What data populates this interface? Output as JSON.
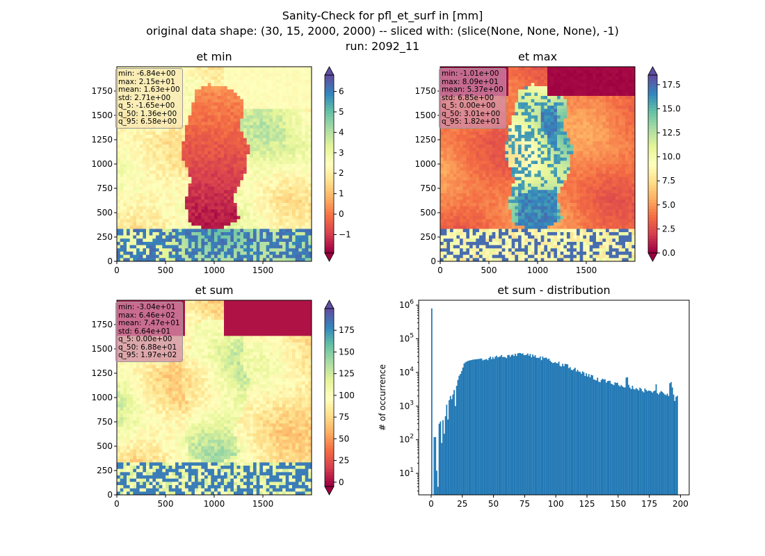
{
  "figure": {
    "title_line1": "Sanity-Check for pfl_et_surf in [mm]",
    "title_line2": "original data shape: (30, 15, 2000, 2000) -- sliced with: (slice(None, None, None), -1)",
    "title_line3": "run: 2092_11"
  },
  "colormap": "Spectral",
  "chart_data": [
    {
      "type": "heatmap",
      "title": "et min",
      "xlim": [
        0,
        2000
      ],
      "ylim": [
        0,
        2000
      ],
      "x_ticks": [
        "0",
        "500",
        "1000",
        "1500"
      ],
      "y_ticks": [
        "0",
        "250",
        "500",
        "750",
        "1000",
        "1250",
        "1500",
        "1750"
      ],
      "colorbar": {
        "min": -1.9,
        "max": 6.8,
        "ticks": [
          -1,
          0,
          1,
          2,
          3,
          4,
          5,
          6
        ],
        "tick_labels": [
          "−1",
          "0",
          "1",
          "2",
          "3",
          "4",
          "5",
          "6"
        ]
      },
      "stats": [
        "min: -6.84e+00",
        "max: 2.15e+01",
        "mean: 1.63e+00",
        "std: 2.71e+00",
        "q_5: -1.65e+00",
        "q_50: 1.36e+00",
        "q_95: 6.58e+00"
      ]
    },
    {
      "type": "heatmap",
      "title": "et max",
      "xlim": [
        0,
        2000
      ],
      "ylim": [
        0,
        2000
      ],
      "x_ticks": [
        "0",
        "500",
        "1000",
        "1500"
      ],
      "y_ticks": [
        "0",
        "250",
        "500",
        "750",
        "1000",
        "1250",
        "1500",
        "1750"
      ],
      "colorbar": {
        "min": 0,
        "max": 18.5,
        "ticks": [
          0,
          2.5,
          5,
          7.5,
          10,
          12.5,
          15,
          17.5
        ],
        "tick_labels": [
          "0.0",
          "2.5",
          "5.0",
          "7.5",
          "10.0",
          "12.5",
          "15.0",
          "17.5"
        ]
      },
      "stats": [
        "min: -1.01e+00",
        "max: 8.09e+01",
        "mean: 5.37e+00",
        "std: 6.85e+00",
        "q_5: 0.00e+00",
        "q_50: 3.01e+00",
        "q_95: 1.82e+01"
      ]
    },
    {
      "type": "heatmap",
      "title": "et sum",
      "xlim": [
        0,
        2000
      ],
      "ylim": [
        0,
        2000
      ],
      "x_ticks": [
        "0",
        "500",
        "1000",
        "1500"
      ],
      "y_ticks": [
        "0",
        "250",
        "500",
        "750",
        "1000",
        "1250",
        "1500",
        "1750"
      ],
      "colorbar": {
        "min": -5,
        "max": 200,
        "ticks": [
          0,
          25,
          50,
          75,
          100,
          125,
          150,
          175
        ],
        "tick_labels": [
          "0",
          "25",
          "50",
          "75",
          "100",
          "125",
          "150",
          "175"
        ]
      },
      "stats": [
        "min: -3.04e+01",
        "max: 6.46e+02",
        "mean: 7.47e+01",
        "std: 6.64e+01",
        "q_5: 0.00e+00",
        "q_50: 6.88e+01",
        "q_95: 1.97e+02"
      ]
    },
    {
      "type": "bar",
      "title": "et sum - distribution",
      "ylabel": "# of occurrence",
      "xlabel": "",
      "y_scale": "log",
      "xlim": [
        -10,
        207
      ],
      "ylim": [
        2.3,
        1400000
      ],
      "x_ticks": [
        0,
        25,
        50,
        75,
        100,
        125,
        150,
        175,
        200
      ],
      "y_ticks": [
        10,
        100,
        1000,
        10000,
        100000,
        1000000
      ],
      "y_tick_exponents": [
        "1",
        "2",
        "3",
        "4",
        "5",
        "6"
      ],
      "bar_color": "#1f77b4",
      "bin_width": 1,
      "bins": [
        [
          0,
          800000
        ],
        [
          2,
          120
        ],
        [
          3,
          12
        ],
        [
          4,
          4
        ],
        [
          5,
          300
        ],
        [
          6,
          350
        ],
        [
          7,
          80
        ],
        [
          8,
          380
        ],
        [
          9,
          150
        ],
        [
          10,
          500
        ],
        [
          11,
          1100
        ],
        [
          12,
          400
        ],
        [
          13,
          1500
        ],
        [
          14,
          2000
        ],
        [
          15,
          1600
        ],
        [
          16,
          2200
        ],
        [
          17,
          3000
        ],
        [
          18,
          1000
        ],
        [
          19,
          4000
        ],
        [
          20,
          6000
        ],
        [
          21,
          8000
        ],
        [
          22,
          9000
        ],
        [
          23,
          11000
        ],
        [
          24,
          14000
        ],
        [
          25,
          17000
        ],
        [
          27,
          20000
        ],
        [
          29,
          22000
        ],
        [
          31,
          23000
        ],
        [
          33,
          24000
        ],
        [
          35,
          24500
        ],
        [
          37,
          25000
        ],
        [
          40,
          26000
        ],
        [
          45,
          27000
        ],
        [
          50,
          28000
        ],
        [
          55,
          29000
        ],
        [
          60,
          31000
        ],
        [
          65,
          33000
        ],
        [
          70,
          36000
        ],
        [
          75,
          34000
        ],
        [
          80,
          32000
        ],
        [
          85,
          29000
        ],
        [
          90,
          26000
        ],
        [
          95,
          23000
        ],
        [
          100,
          20000
        ],
        [
          105,
          17000
        ],
        [
          110,
          15000
        ],
        [
          115,
          12000
        ],
        [
          120,
          10000
        ],
        [
          125,
          8500
        ],
        [
          130,
          7000
        ],
        [
          135,
          6000
        ],
        [
          140,
          5500
        ],
        [
          145,
          5000
        ],
        [
          150,
          4500
        ],
        [
          155,
          4000
        ],
        [
          160,
          3700
        ],
        [
          165,
          3300
        ],
        [
          170,
          3000
        ],
        [
          175,
          2800
        ],
        [
          180,
          2600
        ],
        [
          185,
          2400
        ],
        [
          190,
          2200
        ],
        [
          193,
          3200
        ],
        [
          195,
          1500
        ],
        [
          197,
          2000
        ]
      ]
    }
  ]
}
